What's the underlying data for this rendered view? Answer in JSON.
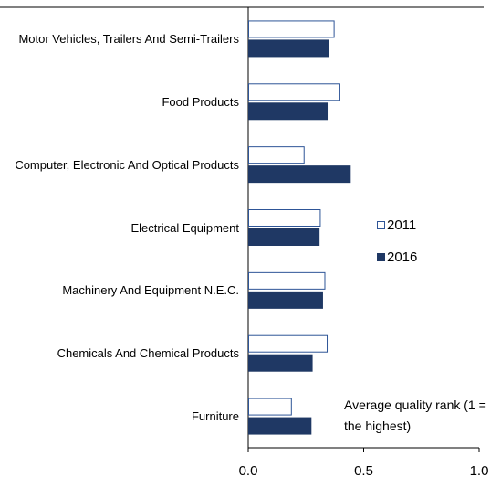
{
  "chart_data": {
    "type": "barh",
    "categories": [
      "Motor Vehicles, Trailers And Semi-Trailers",
      "Food Products",
      "Computer, Electronic And Optical Products",
      "Electrical Equipment",
      "Machinery And Equipment N.E.C.",
      "Chemicals And Chemical Products",
      "Furniture"
    ],
    "series": [
      {
        "name": "2011",
        "color": "#2e5597",
        "fill": "#ffffff",
        "values": [
          0.37,
          0.395,
          0.24,
          0.31,
          0.33,
          0.34,
          0.185
        ]
      },
      {
        "name": "2016",
        "color": "#1f3864",
        "fill": "#1f3864",
        "values": [
          0.345,
          0.34,
          0.44,
          0.305,
          0.32,
          0.275,
          0.27
        ]
      }
    ],
    "xlim": [
      0,
      1
    ],
    "xticks": [
      {
        "value": 0,
        "label": "0.0"
      },
      {
        "value": 0.5,
        "label": "0.5"
      },
      {
        "value": 1,
        "label": "1.0"
      }
    ],
    "annotation": "Average quality rank (1 = the highest)",
    "grid": false
  }
}
